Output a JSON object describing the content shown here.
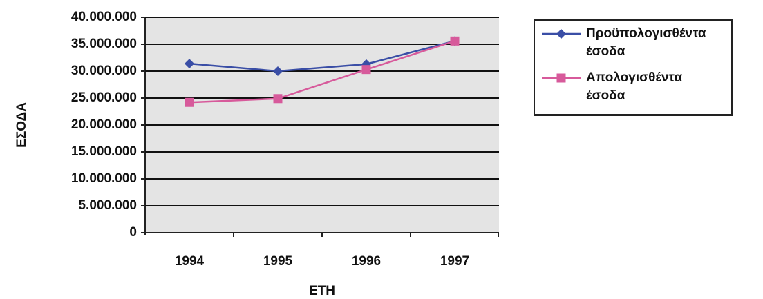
{
  "chart_data": {
    "type": "line",
    "categories": [
      "1994",
      "1995",
      "1996",
      "1997"
    ],
    "series": [
      {
        "name": "Προϋπολογισθέντα έσοδα",
        "color": "#3a4ea6",
        "marker": "diamond",
        "values": [
          31400000,
          30000000,
          31300000,
          35600000
        ]
      },
      {
        "name": "Απολογισθέντα έσοδα",
        "color": "#d75a9b",
        "marker": "square",
        "values": [
          24200000,
          24900000,
          30300000,
          35600000
        ]
      }
    ],
    "ylim": [
      0,
      40000000
    ],
    "yticks": [
      0,
      {
        "value": 5000000,
        "label": "5.000.000"
      },
      {
        "value": 10000000,
        "label": "10.000.000"
      },
      {
        "value": 15000000,
        "label": "15.000.000"
      },
      {
        "value": 20000000,
        "label": "20.000.000"
      },
      {
        "value": 25000000,
        "label": "25.000.000"
      },
      {
        "value": 30000000,
        "label": "30.000.000"
      },
      {
        "value": 35000000,
        "label": "35.000.000"
      },
      {
        "value": 40000000,
        "label": "40.000.000"
      }
    ],
    "xlabel": "ΕΤΗ",
    "ylabel": "ΕΣΟΔΑ",
    "grid": true,
    "legend": "right"
  }
}
